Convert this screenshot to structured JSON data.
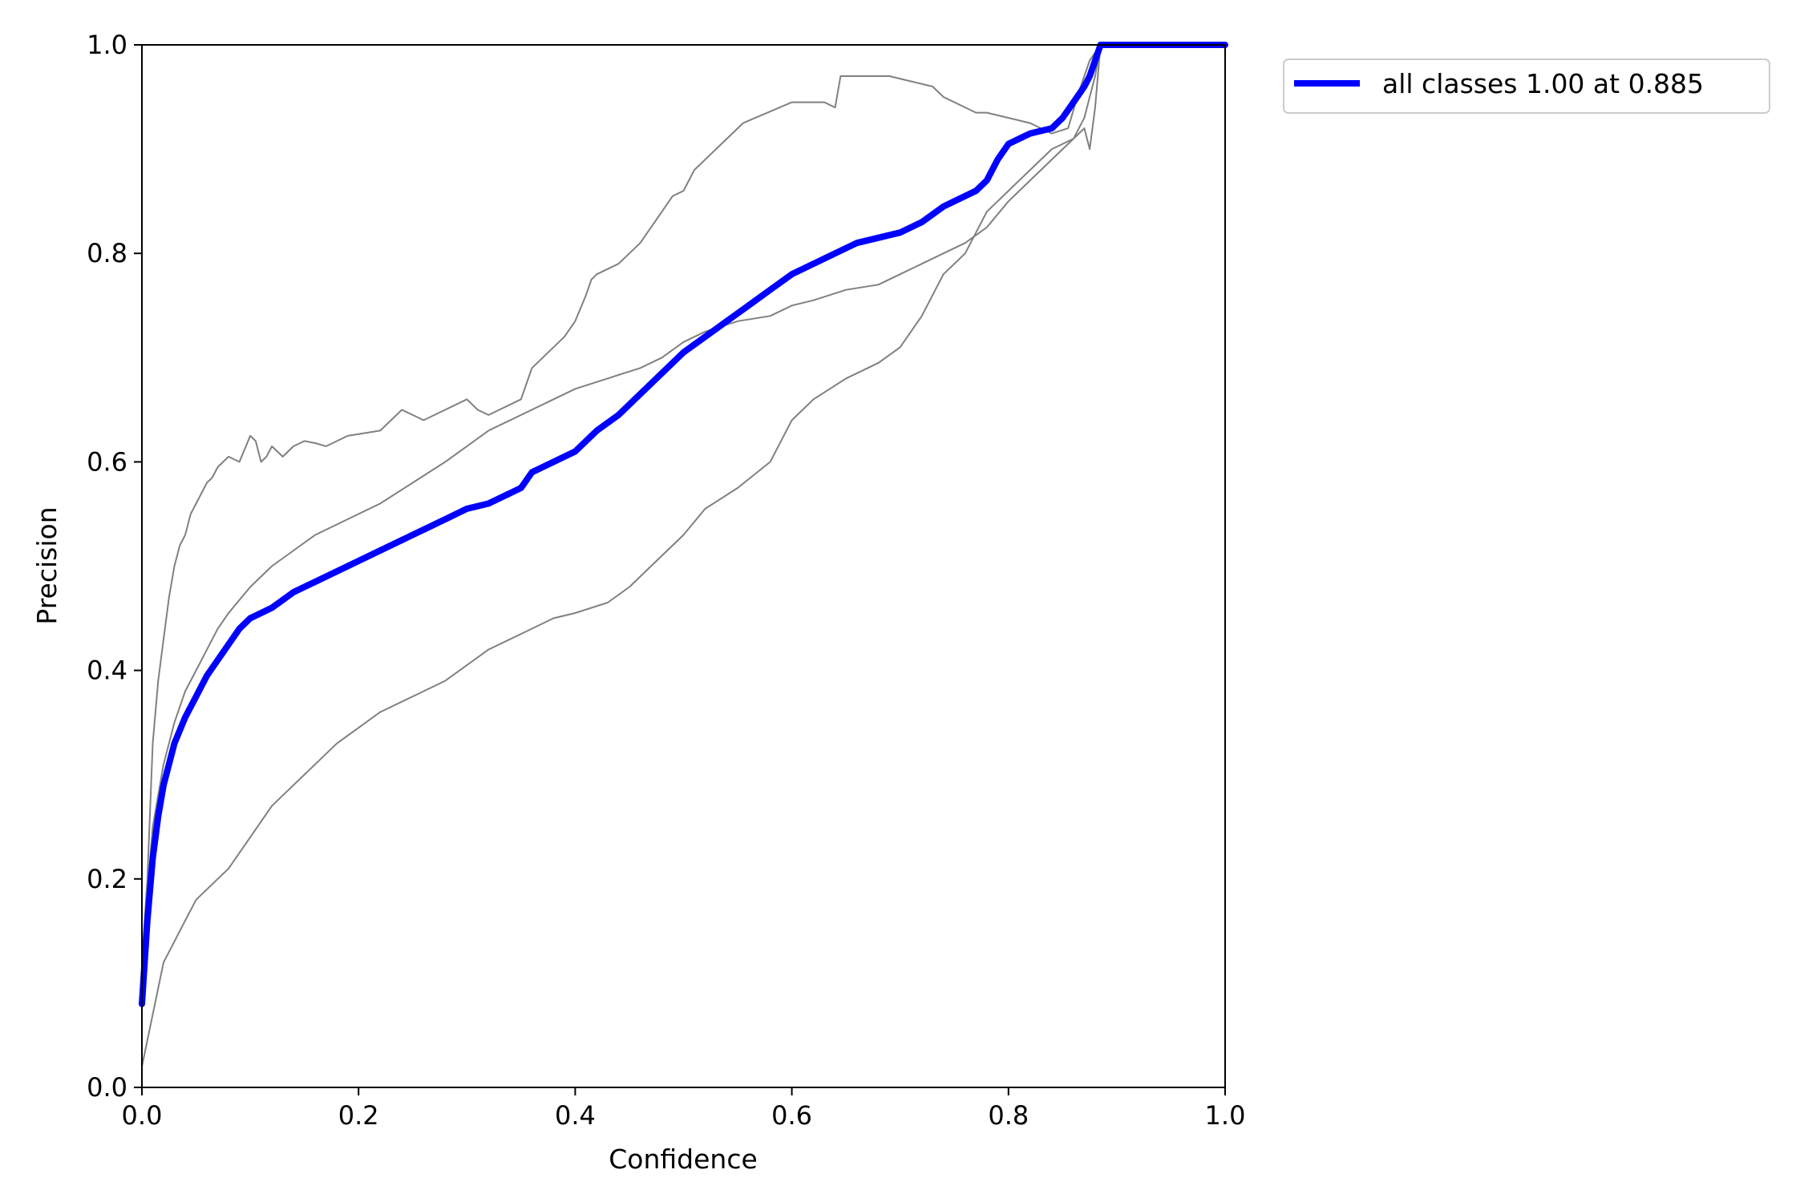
{
  "chart_data": {
    "type": "line",
    "title": "",
    "xlabel": "Confidence",
    "ylabel": "Precision",
    "xlim": [
      0,
      1
    ],
    "ylim": [
      0,
      1
    ],
    "x_ticks": [
      "0.0",
      "0.2",
      "0.4",
      "0.6",
      "0.8",
      "1.0"
    ],
    "y_ticks": [
      "0.0",
      "0.2",
      "0.4",
      "0.6",
      "0.8",
      "1.0"
    ],
    "legend": {
      "position": "outside-top-right",
      "entries": [
        "all classes 1.00 at 0.885"
      ]
    },
    "colors": {
      "class_series": "#808080",
      "all_classes": "#0000ff"
    },
    "series": [
      {
        "name": "",
        "color": "#808080",
        "x": [
          0.0,
          0.005,
          0.01,
          0.015,
          0.02,
          0.025,
          0.03,
          0.035,
          0.04,
          0.045,
          0.05,
          0.055,
          0.06,
          0.065,
          0.07,
          0.075,
          0.08,
          0.09,
          0.1,
          0.105,
          0.11,
          0.115,
          0.12,
          0.125,
          0.13,
          0.14,
          0.15,
          0.16,
          0.17,
          0.19,
          0.22,
          0.24,
          0.25,
          0.26,
          0.27,
          0.28,
          0.3,
          0.31,
          0.32,
          0.33,
          0.35,
          0.36,
          0.37,
          0.38,
          0.39,
          0.4,
          0.41,
          0.415,
          0.42,
          0.43,
          0.44,
          0.45,
          0.46,
          0.47,
          0.48,
          0.49,
          0.5,
          0.51,
          0.53,
          0.55,
          0.555,
          0.6,
          0.63,
          0.64,
          0.645,
          0.69,
          0.71,
          0.73,
          0.74,
          0.76,
          0.77,
          0.78,
          0.8,
          0.82,
          0.84,
          0.855,
          0.865,
          0.875,
          0.885,
          0.9,
          1.0
        ],
        "y": [
          0.12,
          0.2,
          0.33,
          0.39,
          0.43,
          0.47,
          0.5,
          0.52,
          0.53,
          0.55,
          0.56,
          0.57,
          0.58,
          0.585,
          0.595,
          0.6,
          0.605,
          0.6,
          0.625,
          0.62,
          0.6,
          0.605,
          0.615,
          0.61,
          0.605,
          0.615,
          0.62,
          0.618,
          0.615,
          0.625,
          0.63,
          0.65,
          0.645,
          0.64,
          0.645,
          0.65,
          0.66,
          0.65,
          0.645,
          0.65,
          0.66,
          0.69,
          0.7,
          0.71,
          0.72,
          0.735,
          0.76,
          0.775,
          0.78,
          0.785,
          0.79,
          0.8,
          0.81,
          0.825,
          0.84,
          0.855,
          0.86,
          0.88,
          0.9,
          0.92,
          0.925,
          0.945,
          0.945,
          0.94,
          0.97,
          0.97,
          0.965,
          0.96,
          0.95,
          0.94,
          0.935,
          0.935,
          0.93,
          0.925,
          0.915,
          0.92,
          0.955,
          0.985,
          1.0,
          1.0,
          1.0
        ]
      },
      {
        "name": "",
        "color": "#808080",
        "x": [
          0.0,
          0.01,
          0.02,
          0.03,
          0.04,
          0.05,
          0.06,
          0.07,
          0.08,
          0.1,
          0.12,
          0.14,
          0.16,
          0.18,
          0.2,
          0.22,
          0.25,
          0.28,
          0.3,
          0.32,
          0.35,
          0.38,
          0.4,
          0.43,
          0.46,
          0.48,
          0.5,
          0.52,
          0.55,
          0.58,
          0.6,
          0.62,
          0.65,
          0.68,
          0.7,
          0.72,
          0.74,
          0.76,
          0.78,
          0.8,
          0.82,
          0.84,
          0.86,
          0.87,
          0.875,
          0.88,
          0.885,
          0.9,
          1.0
        ],
        "y": [
          0.12,
          0.25,
          0.31,
          0.35,
          0.38,
          0.4,
          0.42,
          0.44,
          0.455,
          0.48,
          0.5,
          0.515,
          0.53,
          0.54,
          0.55,
          0.56,
          0.58,
          0.6,
          0.615,
          0.63,
          0.645,
          0.66,
          0.67,
          0.68,
          0.69,
          0.7,
          0.715,
          0.725,
          0.735,
          0.74,
          0.75,
          0.755,
          0.765,
          0.77,
          0.78,
          0.79,
          0.8,
          0.81,
          0.825,
          0.85,
          0.87,
          0.89,
          0.91,
          0.93,
          0.95,
          0.97,
          1.0,
          1.0,
          1.0
        ]
      },
      {
        "name": "",
        "color": "#808080",
        "x": [
          0.0,
          0.01,
          0.02,
          0.03,
          0.04,
          0.05,
          0.06,
          0.08,
          0.1,
          0.12,
          0.14,
          0.16,
          0.18,
          0.2,
          0.22,
          0.25,
          0.28,
          0.3,
          0.32,
          0.35,
          0.38,
          0.4,
          0.43,
          0.45,
          0.47,
          0.5,
          0.52,
          0.55,
          0.58,
          0.6,
          0.62,
          0.65,
          0.68,
          0.7,
          0.72,
          0.74,
          0.76,
          0.78,
          0.8,
          0.82,
          0.84,
          0.86,
          0.87,
          0.875,
          0.88,
          0.885,
          0.9,
          1.0
        ],
        "y": [
          0.02,
          0.07,
          0.12,
          0.14,
          0.16,
          0.18,
          0.19,
          0.21,
          0.24,
          0.27,
          0.29,
          0.31,
          0.33,
          0.345,
          0.36,
          0.375,
          0.39,
          0.405,
          0.42,
          0.435,
          0.45,
          0.455,
          0.465,
          0.48,
          0.5,
          0.53,
          0.555,
          0.575,
          0.6,
          0.64,
          0.66,
          0.68,
          0.695,
          0.71,
          0.74,
          0.78,
          0.8,
          0.84,
          0.86,
          0.88,
          0.9,
          0.91,
          0.92,
          0.9,
          0.94,
          1.0,
          1.0,
          1.0
        ]
      },
      {
        "name": "all classes 1.00 at 0.885",
        "color": "#0000ff",
        "x": [
          0.0,
          0.005,
          0.01,
          0.015,
          0.02,
          0.03,
          0.04,
          0.05,
          0.06,
          0.07,
          0.08,
          0.09,
          0.1,
          0.11,
          0.12,
          0.14,
          0.16,
          0.18,
          0.2,
          0.22,
          0.24,
          0.26,
          0.28,
          0.3,
          0.32,
          0.34,
          0.35,
          0.36,
          0.38,
          0.4,
          0.42,
          0.44,
          0.46,
          0.48,
          0.5,
          0.52,
          0.54,
          0.56,
          0.58,
          0.6,
          0.62,
          0.64,
          0.66,
          0.68,
          0.7,
          0.72,
          0.74,
          0.76,
          0.77,
          0.78,
          0.79,
          0.8,
          0.82,
          0.84,
          0.85,
          0.86,
          0.87,
          0.875,
          0.88,
          0.885,
          0.9,
          1.0
        ],
        "y": [
          0.08,
          0.16,
          0.22,
          0.26,
          0.29,
          0.33,
          0.355,
          0.375,
          0.395,
          0.41,
          0.425,
          0.44,
          0.45,
          0.455,
          0.46,
          0.475,
          0.485,
          0.495,
          0.505,
          0.515,
          0.525,
          0.535,
          0.545,
          0.555,
          0.56,
          0.57,
          0.575,
          0.59,
          0.6,
          0.61,
          0.63,
          0.645,
          0.665,
          0.685,
          0.705,
          0.72,
          0.735,
          0.75,
          0.765,
          0.78,
          0.79,
          0.8,
          0.81,
          0.815,
          0.82,
          0.83,
          0.845,
          0.855,
          0.86,
          0.87,
          0.89,
          0.905,
          0.915,
          0.92,
          0.93,
          0.945,
          0.96,
          0.97,
          0.985,
          1.0,
          1.0,
          1.0
        ]
      }
    ]
  }
}
